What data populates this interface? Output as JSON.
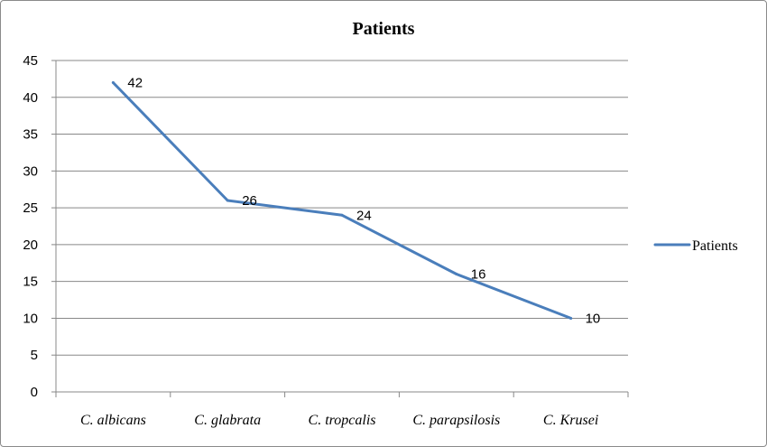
{
  "chart_data": {
    "type": "line",
    "title": "Patients",
    "categories": [
      "C. albicans",
      "C. glabrata",
      "C. tropcalis",
      "C. parapsilosis",
      "C. Krusei"
    ],
    "series": [
      {
        "name": "Patients",
        "values": [
          42,
          26,
          24,
          16,
          10
        ],
        "color": "#4a7ebb"
      }
    ],
    "ylim": [
      0,
      45
    ],
    "yticks": [
      0,
      5,
      10,
      15,
      20,
      25,
      30,
      35,
      40,
      45
    ],
    "grid": true,
    "legend_position": "right",
    "data_labels": true
  }
}
